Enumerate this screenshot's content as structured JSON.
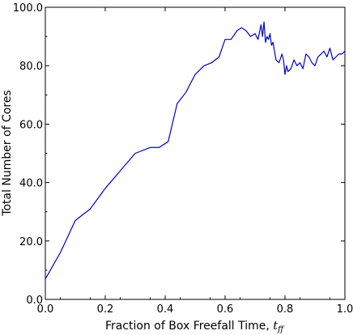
{
  "chart_data": {
    "type": "line",
    "xlabel": "Fraction of Box Freefall Time,",
    "xlabel_symbol": "t",
    "xlabel_subscript": "ff",
    "ylabel": "Total Number of Cores",
    "xlim": [
      0.0,
      1.0
    ],
    "ylim": [
      0.0,
      100.0
    ],
    "x_ticks": [
      "0.0",
      "0.2",
      "0.4",
      "0.6",
      "0.8",
      "1.0"
    ],
    "y_ticks": [
      "0.0",
      "20.0",
      "40.0",
      "60.0",
      "80.0",
      "100.0"
    ],
    "grid": false,
    "line_color": "#0000cc",
    "series": [
      {
        "x": [
          0.0,
          0.05,
          0.1,
          0.15,
          0.2,
          0.25,
          0.3,
          0.35,
          0.38,
          0.41,
          0.44,
          0.47,
          0.5,
          0.53,
          0.555,
          0.58,
          0.6,
          0.62,
          0.64,
          0.655,
          0.67,
          0.685,
          0.7,
          0.71,
          0.72,
          0.725,
          0.73,
          0.735,
          0.74,
          0.745,
          0.75,
          0.755,
          0.76,
          0.77,
          0.78,
          0.79,
          0.795,
          0.8,
          0.805,
          0.81,
          0.82,
          0.83,
          0.84,
          0.85,
          0.86,
          0.87,
          0.88,
          0.89,
          0.9,
          0.91,
          0.92,
          0.93,
          0.94,
          0.95,
          0.96,
          0.97,
          0.98,
          0.99,
          1.0
        ],
        "y": [
          7,
          16,
          27,
          31,
          38,
          44,
          50,
          52,
          52,
          54,
          67,
          71,
          77,
          80,
          81,
          83,
          89,
          89,
          92,
          93,
          92,
          90,
          91,
          89,
          94,
          90,
          95,
          88,
          90,
          89,
          91,
          87,
          88,
          82,
          81,
          84,
          82,
          77,
          80,
          78,
          79,
          82,
          80,
          81,
          79,
          84,
          83,
          81,
          80,
          83,
          84,
          85,
          83,
          86,
          82,
          83,
          84,
          84,
          85
        ]
      }
    ]
  }
}
